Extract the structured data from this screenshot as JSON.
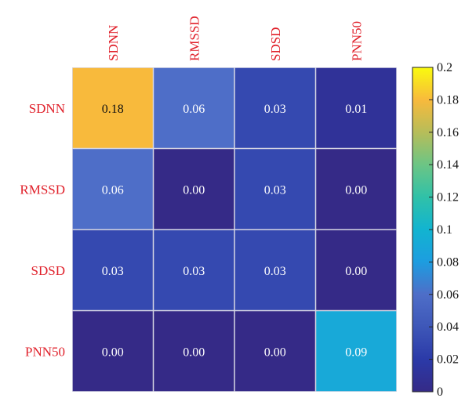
{
  "chart_data": {
    "type": "heatmap",
    "title": "",
    "xlabel": "",
    "ylabel": "",
    "x_categories": [
      "SDNN",
      "RMSSD",
      "SDSD",
      "PNN50"
    ],
    "y_categories": [
      "SDNN",
      "RMSSD",
      "SDSD",
      "PNN50"
    ],
    "values": [
      [
        0.18,
        0.06,
        0.03,
        0.01
      ],
      [
        0.06,
        0.0,
        0.03,
        0.0
      ],
      [
        0.03,
        0.03,
        0.03,
        0.0
      ],
      [
        0.0,
        0.0,
        0.0,
        0.09
      ]
    ],
    "cell_labels": [
      [
        "0.18",
        "0.06",
        "0.03",
        "0.01"
      ],
      [
        "0.06",
        "0.00",
        "0.03",
        "0.00"
      ],
      [
        "0.03",
        "0.03",
        "0.03",
        "0.00"
      ],
      [
        "0.00",
        "0.00",
        "0.00",
        "0.09"
      ]
    ],
    "colorbar": {
      "range": [
        0,
        0.2
      ],
      "ticks": [
        0,
        0.02,
        0.04,
        0.06,
        0.08,
        0.1,
        0.12,
        0.14,
        0.16,
        0.18,
        0.2
      ],
      "tick_labels": [
        "0",
        "0.02",
        "0.04",
        "0.06",
        "0.08",
        "0.1",
        "0.12",
        "0.14",
        "0.16",
        "0.18",
        "0.2"
      ],
      "colormap": "parula",
      "placement": "right"
    },
    "label_color": "#e0202a",
    "grid": true
  }
}
